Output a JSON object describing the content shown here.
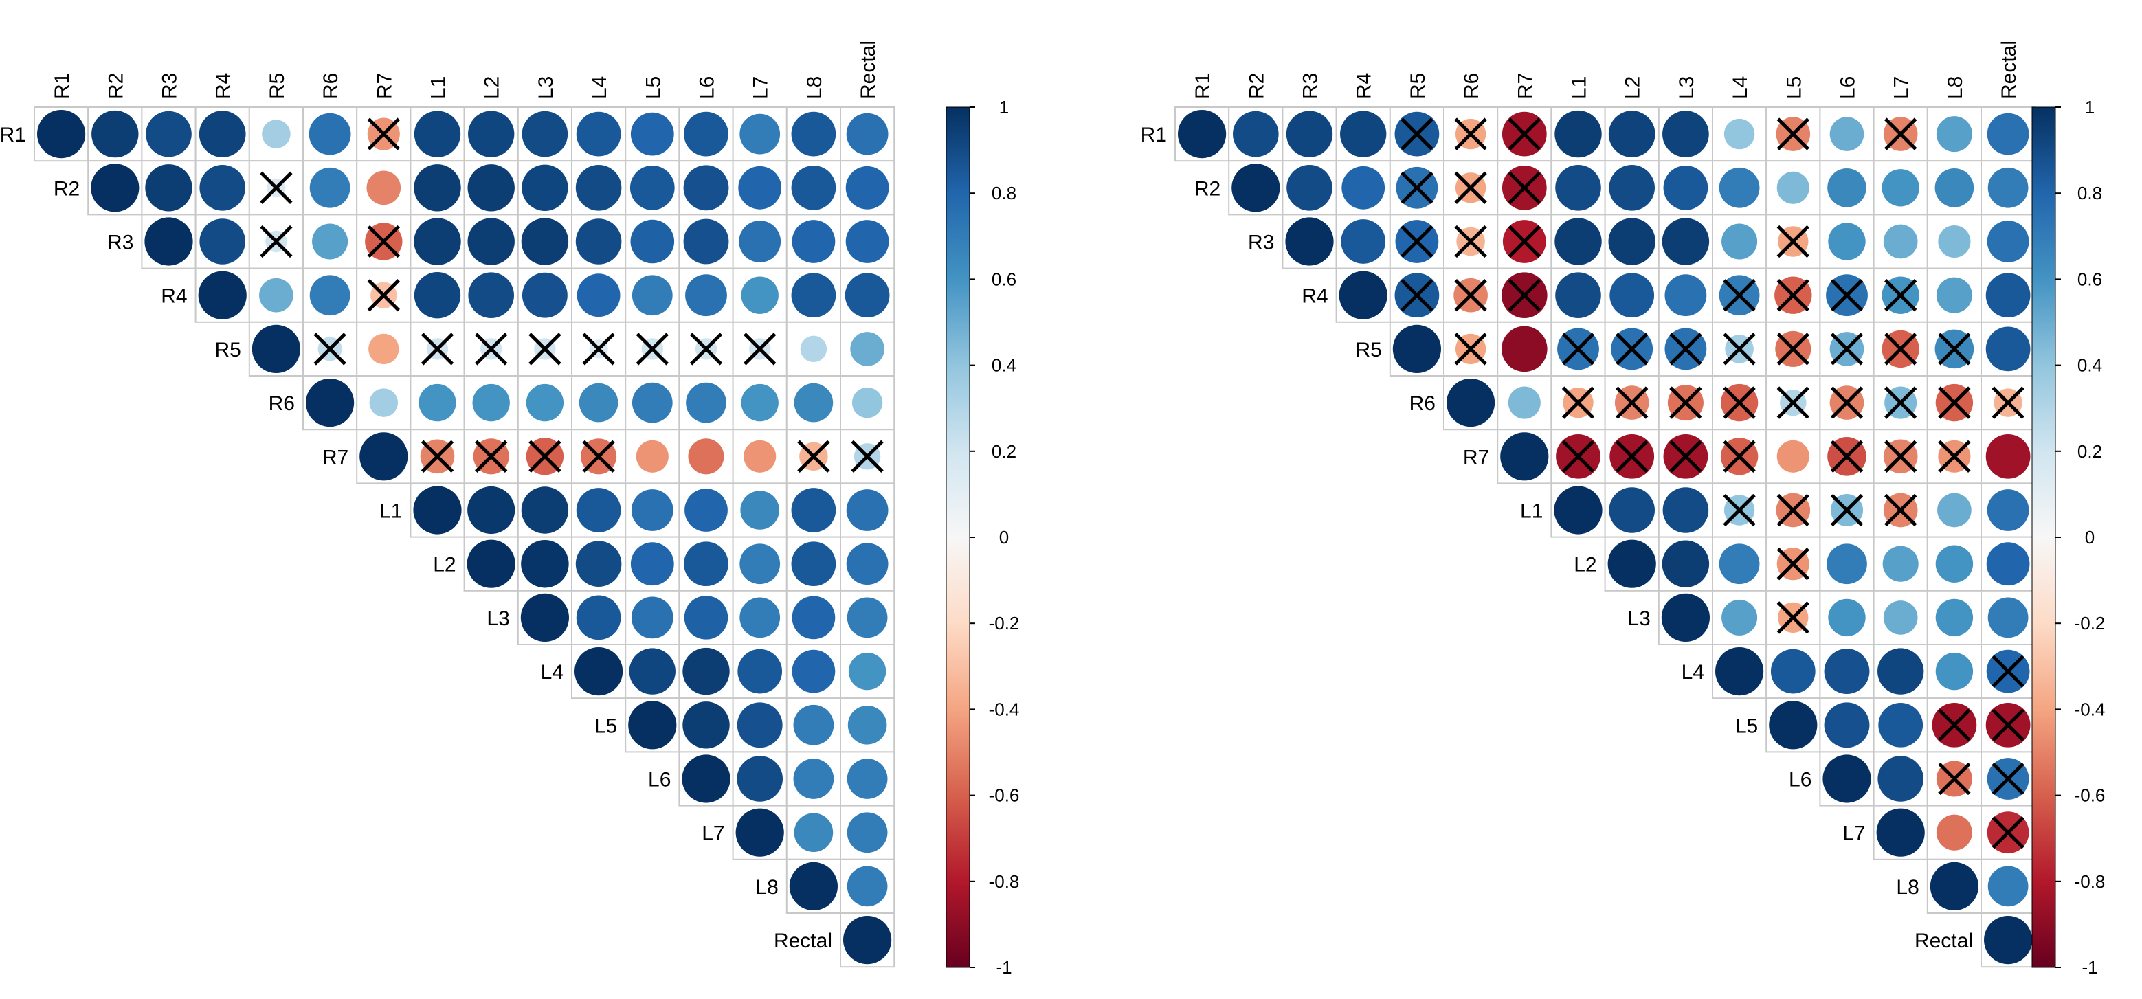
{
  "chart_data": [
    {
      "type": "heatmap",
      "subtype": "correlogram-upper",
      "variables": [
        "R1",
        "R2",
        "R3",
        "R4",
        "R5",
        "R6",
        "R7",
        "L1",
        "L2",
        "L3",
        "L4",
        "L5",
        "L6",
        "L7",
        "L8",
        "Rectal"
      ],
      "colorbar": {
        "ticks": [
          "1",
          "0.8",
          "0.6",
          "0.4",
          "0.2",
          "0",
          "-0.2",
          "-0.4",
          "-0.6",
          "-0.8",
          "-1"
        ],
        "range": [
          -1,
          1
        ],
        "colors": {
          "neg": "#67001F",
          "mid": "#F7F7F7",
          "pos": "#053061"
        }
      },
      "matrix": [
        [
          1,
          0.95,
          0.9,
          0.93,
          0.35,
          0.75,
          -0.45,
          0.92,
          0.92,
          0.9,
          0.85,
          0.8,
          0.85,
          0.7,
          0.85,
          0.75
        ],
        [
          null,
          1,
          0.95,
          0.9,
          0.15,
          0.7,
          -0.5,
          0.95,
          0.95,
          0.92,
          0.9,
          0.85,
          0.88,
          0.8,
          0.85,
          0.8
        ],
        [
          null,
          null,
          1,
          0.9,
          0.2,
          0.55,
          -0.6,
          0.95,
          0.95,
          0.95,
          0.9,
          0.82,
          0.88,
          0.75,
          0.8,
          0.8
        ],
        [
          null,
          null,
          null,
          1,
          0.5,
          0.7,
          -0.3,
          0.92,
          0.9,
          0.88,
          0.8,
          0.7,
          0.75,
          0.6,
          0.85,
          0.85
        ],
        [
          null,
          null,
          null,
          null,
          1,
          0.25,
          -0.4,
          0.2,
          0.2,
          0.2,
          0.15,
          0.2,
          0.2,
          0.2,
          0.3,
          0.5
        ],
        [
          null,
          null,
          null,
          null,
          null,
          1,
          0.35,
          0.6,
          0.6,
          0.6,
          0.65,
          0.7,
          0.7,
          0.6,
          0.65,
          0.4
        ],
        [
          null,
          null,
          null,
          null,
          null,
          null,
          1,
          -0.5,
          -0.55,
          -0.6,
          -0.55,
          -0.45,
          -0.55,
          -0.45,
          -0.35,
          0.3
        ],
        [
          null,
          null,
          null,
          null,
          null,
          null,
          null,
          1,
          0.97,
          0.95,
          0.85,
          0.75,
          0.8,
          0.65,
          0.85,
          0.75
        ],
        [
          null,
          null,
          null,
          null,
          null,
          null,
          null,
          null,
          1,
          0.98,
          0.9,
          0.8,
          0.85,
          0.7,
          0.85,
          0.75
        ],
        [
          null,
          null,
          null,
          null,
          null,
          null,
          null,
          null,
          null,
          1,
          0.85,
          0.75,
          0.82,
          0.7,
          0.8,
          0.7
        ],
        [
          null,
          null,
          null,
          null,
          null,
          null,
          null,
          null,
          null,
          null,
          1,
          0.92,
          0.95,
          0.85,
          0.8,
          0.6
        ],
        [
          null,
          null,
          null,
          null,
          null,
          null,
          null,
          null,
          null,
          null,
          null,
          1,
          0.95,
          0.88,
          0.7,
          0.65
        ],
        [
          null,
          null,
          null,
          null,
          null,
          null,
          null,
          null,
          null,
          null,
          null,
          null,
          1,
          0.9,
          0.7,
          0.7
        ],
        [
          null,
          null,
          null,
          null,
          null,
          null,
          null,
          null,
          null,
          null,
          null,
          null,
          null,
          1,
          0.65,
          0.7
        ],
        [
          null,
          null,
          null,
          null,
          null,
          null,
          null,
          null,
          null,
          null,
          null,
          null,
          null,
          null,
          1,
          0.7
        ],
        [
          null,
          null,
          null,
          null,
          null,
          null,
          null,
          null,
          null,
          null,
          null,
          null,
          null,
          null,
          null,
          1
        ]
      ],
      "crossed": [
        [
          1,
          4
        ],
        [
          2,
          4
        ],
        [
          2,
          6
        ],
        [
          0,
          6
        ],
        [
          3,
          6
        ],
        [
          4,
          5
        ],
        [
          4,
          7
        ],
        [
          4,
          8
        ],
        [
          4,
          9
        ],
        [
          4,
          10
        ],
        [
          4,
          11
        ],
        [
          4,
          12
        ],
        [
          4,
          13
        ],
        [
          6,
          7
        ],
        [
          6,
          8
        ],
        [
          6,
          9
        ],
        [
          6,
          10
        ],
        [
          6,
          14
        ],
        [
          6,
          15
        ]
      ]
    },
    {
      "type": "heatmap",
      "subtype": "correlogram-upper",
      "variables": [
        "R1",
        "R2",
        "R3",
        "R4",
        "R5",
        "R6",
        "R7",
        "L1",
        "L2",
        "L3",
        "L4",
        "L5",
        "L6",
        "L7",
        "L8",
        "Rectal"
      ],
      "colorbar": {
        "ticks": [
          "1",
          "0.8",
          "0.6",
          "0.4",
          "0.2",
          "0",
          "-0.2",
          "-0.4",
          "-0.6",
          "-0.8",
          "-1"
        ],
        "range": [
          -1,
          1
        ],
        "colors": {
          "neg": "#67001F",
          "mid": "#F7F7F7",
          "pos": "#053061"
        }
      },
      "matrix": [
        [
          1,
          0.9,
          0.92,
          0.92,
          0.85,
          -0.4,
          -0.85,
          0.95,
          0.93,
          0.93,
          0.4,
          -0.5,
          0.5,
          -0.5,
          0.55,
          0.75
        ],
        [
          null,
          1,
          0.9,
          0.8,
          0.75,
          -0.4,
          -0.85,
          0.9,
          0.9,
          0.85,
          0.7,
          0.45,
          0.65,
          0.6,
          0.65,
          0.7
        ],
        [
          null,
          null,
          1,
          0.85,
          0.8,
          -0.35,
          -0.8,
          0.95,
          0.95,
          0.95,
          0.55,
          -0.4,
          0.6,
          0.5,
          0.45,
          0.75
        ],
        [
          null,
          null,
          null,
          1,
          0.85,
          -0.5,
          -0.9,
          0.9,
          0.85,
          0.75,
          0.7,
          -0.6,
          0.75,
          0.6,
          0.55,
          0.85
        ],
        [
          null,
          null,
          null,
          null,
          1,
          -0.4,
          -0.9,
          0.75,
          0.75,
          0.75,
          0.35,
          -0.55,
          0.5,
          -0.6,
          0.65,
          0.85
        ],
        [
          null,
          null,
          null,
          null,
          null,
          1,
          0.45,
          -0.4,
          -0.5,
          -0.55,
          -0.6,
          0.3,
          -0.5,
          0.45,
          -0.6,
          -0.35
        ],
        [
          null,
          null,
          null,
          null,
          null,
          null,
          1,
          -0.85,
          -0.85,
          -0.85,
          -0.6,
          -0.45,
          -0.65,
          -0.5,
          -0.45,
          -0.85
        ],
        [
          null,
          null,
          null,
          null,
          null,
          null,
          null,
          1,
          0.9,
          0.9,
          0.4,
          -0.5,
          0.45,
          -0.5,
          0.5,
          0.75
        ],
        [
          null,
          null,
          null,
          null,
          null,
          null,
          null,
          null,
          1,
          0.95,
          0.7,
          -0.45,
          0.7,
          0.55,
          0.6,
          0.8
        ],
        [
          null,
          null,
          null,
          null,
          null,
          null,
          null,
          null,
          null,
          1,
          0.55,
          -0.4,
          0.6,
          0.5,
          0.6,
          0.7
        ],
        [
          null,
          null,
          null,
          null,
          null,
          null,
          null,
          null,
          null,
          null,
          1,
          0.85,
          0.88,
          0.92,
          0.6,
          0.8
        ],
        [
          null,
          null,
          null,
          null,
          null,
          null,
          null,
          null,
          null,
          null,
          null,
          1,
          0.88,
          0.85,
          -0.85,
          -0.85
        ],
        [
          null,
          null,
          null,
          null,
          null,
          null,
          null,
          null,
          null,
          null,
          null,
          null,
          1,
          0.9,
          -0.55,
          0.75
        ],
        [
          null,
          null,
          null,
          null,
          null,
          null,
          null,
          null,
          null,
          null,
          null,
          null,
          null,
          1,
          -0.55,
          -0.75
        ],
        [
          null,
          null,
          null,
          null,
          null,
          null,
          null,
          null,
          null,
          null,
          null,
          null,
          null,
          null,
          1,
          0.7
        ],
        [
          null,
          null,
          null,
          null,
          null,
          null,
          null,
          null,
          null,
          null,
          null,
          null,
          null,
          null,
          null,
          1
        ]
      ],
      "crossed": [
        [
          0,
          4
        ],
        [
          0,
          5
        ],
        [
          0,
          6
        ],
        [
          0,
          11
        ],
        [
          0,
          13
        ],
        [
          1,
          4
        ],
        [
          1,
          5
        ],
        [
          1,
          6
        ],
        [
          2,
          4
        ],
        [
          2,
          5
        ],
        [
          2,
          6
        ],
        [
          2,
          11
        ],
        [
          3,
          4
        ],
        [
          3,
          5
        ],
        [
          3,
          6
        ],
        [
          3,
          10
        ],
        [
          3,
          11
        ],
        [
          3,
          12
        ],
        [
          3,
          13
        ],
        [
          4,
          5
        ],
        [
          4,
          7
        ],
        [
          4,
          8
        ],
        [
          4,
          9
        ],
        [
          4,
          10
        ],
        [
          4,
          11
        ],
        [
          4,
          12
        ],
        [
          4,
          13
        ],
        [
          4,
          14
        ],
        [
          5,
          7
        ],
        [
          5,
          8
        ],
        [
          5,
          9
        ],
        [
          5,
          10
        ],
        [
          5,
          11
        ],
        [
          5,
          12
        ],
        [
          5,
          13
        ],
        [
          5,
          14
        ],
        [
          5,
          15
        ],
        [
          6,
          7
        ],
        [
          6,
          8
        ],
        [
          6,
          9
        ],
        [
          6,
          10
        ],
        [
          6,
          12
        ],
        [
          6,
          13
        ],
        [
          6,
          14
        ],
        [
          7,
          10
        ],
        [
          7,
          11
        ],
        [
          7,
          12
        ],
        [
          7,
          13
        ],
        [
          8,
          11
        ],
        [
          9,
          11
        ],
        [
          10,
          15
        ],
        [
          11,
          14
        ],
        [
          11,
          15
        ],
        [
          12,
          14
        ],
        [
          12,
          15
        ],
        [
          13,
          15
        ]
      ]
    }
  ]
}
